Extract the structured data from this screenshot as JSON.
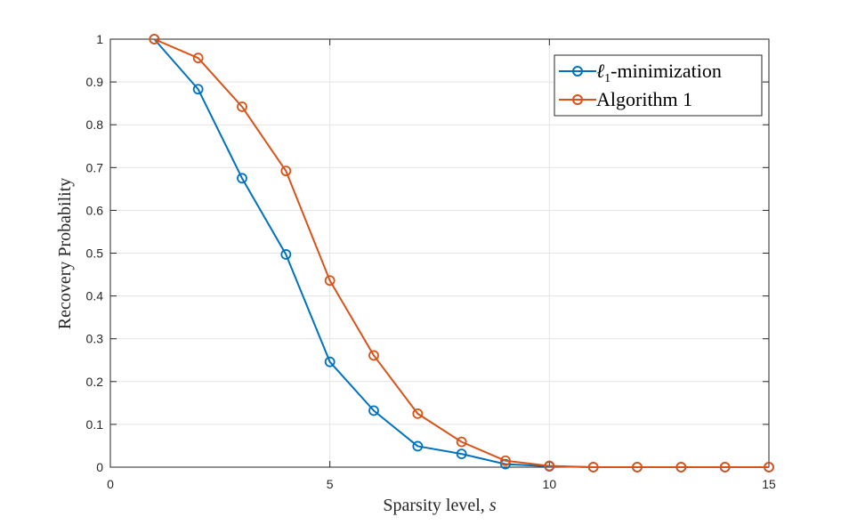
{
  "chart_data": {
    "type": "line",
    "title": "",
    "xlabel_text": "Sparsity level, ",
    "xlabel_var": "s",
    "ylabel": "Recovery Probability",
    "xlim": [
      0,
      15
    ],
    "ylim": [
      0,
      1
    ],
    "xticks": [
      0,
      5,
      10,
      15
    ],
    "yticks": [
      0,
      0.1,
      0.2,
      0.3,
      0.4,
      0.5,
      0.6,
      0.7,
      0.8,
      0.9,
      1
    ],
    "ytick_labels": [
      "0",
      "0.1",
      "0.2",
      "0.3",
      "0.4",
      "0.5",
      "0.6",
      "0.7",
      "0.8",
      "0.9",
      "1"
    ],
    "grid": true,
    "legend_position": "top-right",
    "series": [
      {
        "name": "ℓ1-minimization",
        "legend_main": "ℓ",
        "legend_sub": "1",
        "legend_rest": "-minimization",
        "color": "#0072BD",
        "marker": "circle",
        "x": [
          1,
          2,
          3,
          4,
          5,
          6,
          7,
          8,
          9,
          10,
          11,
          12,
          13,
          14,
          15
        ],
        "y": [
          1.0,
          0.883,
          0.675,
          0.497,
          0.246,
          0.132,
          0.049,
          0.031,
          0.007,
          0.002,
          0,
          0,
          0,
          0,
          0
        ]
      },
      {
        "name": "Algorithm 1",
        "legend_main": "Algorithm 1",
        "legend_sub": "",
        "legend_rest": "",
        "color": "#D95319",
        "marker": "circle",
        "x": [
          1,
          2,
          3,
          4,
          5,
          6,
          7,
          8,
          9,
          10,
          11,
          12,
          13,
          14,
          15
        ],
        "y": [
          1.0,
          0.956,
          0.842,
          0.692,
          0.436,
          0.261,
          0.125,
          0.059,
          0.015,
          0.003,
          0,
          0,
          0,
          0,
          0
        ]
      }
    ]
  }
}
